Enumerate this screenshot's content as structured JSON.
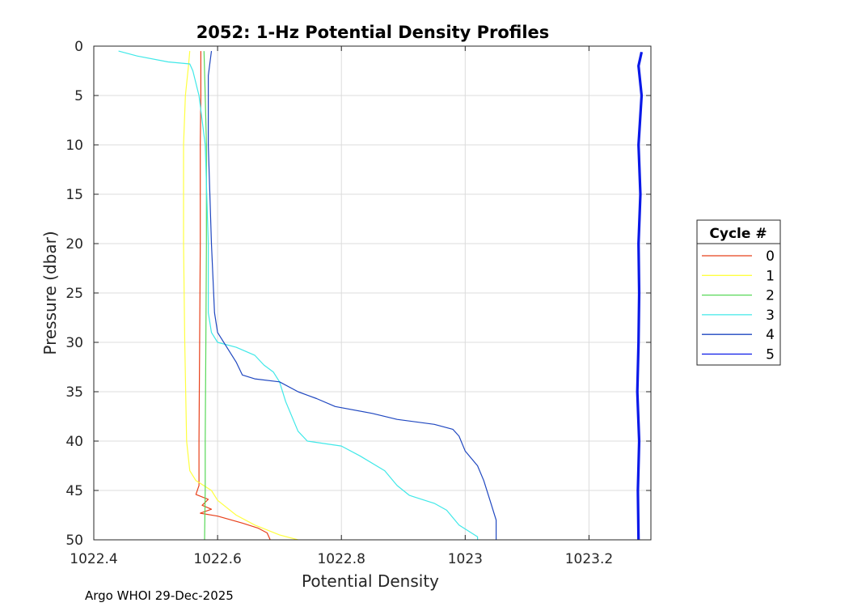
{
  "chart_data": {
    "type": "line",
    "title": "2052: 1-Hz Potential Density Profiles",
    "xlabel": "Potential Density",
    "ylabel": "Pressure (dbar)",
    "xlim": [
      1022.4,
      1023.3
    ],
    "ylim": [
      0,
      50
    ],
    "y_reversed": true,
    "xticks": [
      1022.4,
      1022.6,
      1022.8,
      1023,
      1023.2
    ],
    "xtick_labels": [
      "1022.4",
      "1022.6",
      "1022.8",
      "1023",
      "1023.2"
    ],
    "yticks": [
      0,
      5,
      10,
      15,
      20,
      25,
      30,
      35,
      40,
      45,
      50
    ],
    "ytick_labels": [
      "0",
      "5",
      "10",
      "15",
      "20",
      "25",
      "30",
      "35",
      "40",
      "45",
      "50"
    ],
    "grid": true,
    "legend_title": "Cycle #",
    "legend_placement": "outside right",
    "series": [
      {
        "name": "0",
        "color": "#e8401a",
        "width": 1.2,
        "points": [
          [
            1022.573,
            0.5
          ],
          [
            1022.573,
            5
          ],
          [
            1022.572,
            10
          ],
          [
            1022.572,
            20
          ],
          [
            1022.571,
            30
          ],
          [
            1022.57,
            40
          ],
          [
            1022.57,
            44.5
          ],
          [
            1022.565,
            45.4
          ],
          [
            1022.585,
            45.9
          ],
          [
            1022.575,
            46.5
          ],
          [
            1022.59,
            46.9
          ],
          [
            1022.572,
            47.3
          ],
          [
            1022.6,
            47.6
          ],
          [
            1022.64,
            48.3
          ],
          [
            1022.665,
            48.8
          ],
          [
            1022.68,
            49.3
          ],
          [
            1022.685,
            50
          ]
        ]
      },
      {
        "name": "1",
        "color": "#ffff40",
        "width": 1.2,
        "points": [
          [
            1022.555,
            0.5
          ],
          [
            1022.553,
            2
          ],
          [
            1022.548,
            5
          ],
          [
            1022.545,
            10
          ],
          [
            1022.545,
            20
          ],
          [
            1022.547,
            30
          ],
          [
            1022.55,
            40
          ],
          [
            1022.555,
            43
          ],
          [
            1022.565,
            44
          ],
          [
            1022.59,
            45
          ],
          [
            1022.6,
            46
          ],
          [
            1022.63,
            47.5
          ],
          [
            1022.66,
            48.5
          ],
          [
            1022.7,
            49.5
          ],
          [
            1022.73,
            50
          ]
        ]
      },
      {
        "name": "2",
        "color": "#58d858",
        "width": 1.2,
        "points": [
          [
            1022.578,
            0.5
          ],
          [
            1022.58,
            5
          ],
          [
            1022.582,
            10
          ],
          [
            1022.582,
            20
          ],
          [
            1022.581,
            30
          ],
          [
            1022.58,
            40
          ],
          [
            1022.58,
            45
          ],
          [
            1022.579,
            50
          ]
        ]
      },
      {
        "name": "3",
        "color": "#40e8e8",
        "width": 1.2,
        "points": [
          [
            1022.44,
            0.5
          ],
          [
            1022.47,
            1.0
          ],
          [
            1022.52,
            1.6
          ],
          [
            1022.555,
            1.8
          ],
          [
            1022.56,
            2.5
          ],
          [
            1022.57,
            5
          ],
          [
            1022.58,
            10
          ],
          [
            1022.585,
            20
          ],
          [
            1022.585,
            27
          ],
          [
            1022.59,
            29
          ],
          [
            1022.6,
            30
          ],
          [
            1022.63,
            30.5
          ],
          [
            1022.66,
            31.3
          ],
          [
            1022.675,
            32.3
          ],
          [
            1022.69,
            33
          ],
          [
            1022.7,
            34
          ],
          [
            1022.71,
            36
          ],
          [
            1022.73,
            39
          ],
          [
            1022.745,
            40
          ],
          [
            1022.8,
            40.5
          ],
          [
            1022.83,
            41.5
          ],
          [
            1022.87,
            43
          ],
          [
            1022.89,
            44.5
          ],
          [
            1022.91,
            45.5
          ],
          [
            1022.95,
            46.3
          ],
          [
            1022.97,
            47
          ],
          [
            1022.99,
            48.5
          ],
          [
            1023.02,
            49.7
          ],
          [
            1023.02,
            50
          ]
        ]
      },
      {
        "name": "4",
        "color": "#1f47c0",
        "width": 1.2,
        "points": [
          [
            1022.59,
            0.5
          ],
          [
            1022.585,
            3
          ],
          [
            1022.585,
            10
          ],
          [
            1022.59,
            20
          ],
          [
            1022.595,
            27
          ],
          [
            1022.6,
            29
          ],
          [
            1022.62,
            31
          ],
          [
            1022.63,
            32
          ],
          [
            1022.64,
            33.3
          ],
          [
            1022.66,
            33.7
          ],
          [
            1022.7,
            34
          ],
          [
            1022.73,
            35
          ],
          [
            1022.76,
            35.7
          ],
          [
            1022.79,
            36.5
          ],
          [
            1022.85,
            37.2
          ],
          [
            1022.89,
            37.8
          ],
          [
            1022.95,
            38.3
          ],
          [
            1022.98,
            38.8
          ],
          [
            1022.99,
            39.5
          ],
          [
            1023.0,
            41
          ],
          [
            1023.02,
            42.5
          ],
          [
            1023.03,
            44
          ],
          [
            1023.04,
            46
          ],
          [
            1023.05,
            48
          ],
          [
            1023.05,
            50
          ]
        ]
      },
      {
        "name": "5",
        "color": "#0a19e8",
        "width": 3.2,
        "points": [
          [
            1023.285,
            0.6
          ],
          [
            1023.28,
            2
          ],
          [
            1023.285,
            5
          ],
          [
            1023.28,
            10
          ],
          [
            1023.283,
            15
          ],
          [
            1023.28,
            20
          ],
          [
            1023.281,
            25
          ],
          [
            1023.28,
            30
          ],
          [
            1023.278,
            35
          ],
          [
            1023.281,
            40
          ],
          [
            1023.279,
            45
          ],
          [
            1023.28,
            50
          ]
        ]
      }
    ]
  },
  "footer": {
    "text": "Argo WHOI 29-Dec-2025"
  }
}
